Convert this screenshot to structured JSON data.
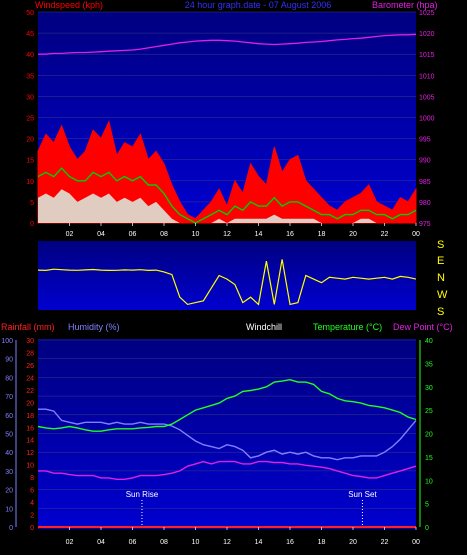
{
  "colors": {
    "background": "#000000",
    "plot_top": "#000080",
    "plot_bottom": "#0000d0",
    "gridline": "#3a3a8a",
    "wind_gust": "#ff0000",
    "wind_avg": "#00d000",
    "wind_min": "#d8fff0",
    "wind_base": "#ffffff",
    "barometer": "#e020e0",
    "wind_dir": "#ffff00",
    "rainfall": "#ff2020",
    "humidity": "#8080ff",
    "windchill": "#ffffff",
    "temperature": "#20ff20",
    "dewpoint": "#e020e0",
    "sun_marker": "#ffffff"
  },
  "header": {
    "windspeed_label": "Windspeed (kph)",
    "graph_title": "24 hour graph.date - 07 August 2006",
    "barometer_label": "Barometer (hpa)"
  },
  "lower_header": {
    "rainfall_label": "Rainfall (mm)",
    "humidity_label": "Humidity (%)",
    "windchill_label": "Windchill",
    "temperature_label": "Temperature (°C)",
    "dewpoint_label": "Dew Point (°C)"
  },
  "compass": [
    "S",
    "E",
    "N",
    "W",
    "S"
  ],
  "sun_labels": {
    "sunrise": "Sun Rise",
    "sunset": "Sun Set"
  },
  "chart_data": [
    {
      "type": "line",
      "name": "wind-barometer",
      "x": [
        0,
        0.5,
        1,
        1.5,
        2,
        2.5,
        3,
        3.5,
        4,
        4.5,
        5,
        5.5,
        6,
        6.5,
        7,
        7.5,
        8,
        8.5,
        9,
        9.5,
        10,
        10.5,
        11,
        11.5,
        12,
        12.5,
        13,
        13.5,
        14,
        14.5,
        15,
        15.5,
        16,
        16.5,
        17,
        17.5,
        18,
        18.5,
        19,
        19.5,
        20,
        20.5,
        21,
        21.5,
        22,
        22.5,
        23,
        23.5,
        24
      ],
      "xticks": [
        "02",
        "04",
        "06",
        "08",
        "10",
        "12",
        "14",
        "16",
        "18",
        "20",
        "22",
        "00"
      ],
      "xtick_positions": [
        2,
        4,
        6,
        8,
        10,
        12,
        14,
        16,
        18,
        20,
        22,
        24
      ],
      "xlim": [
        0,
        24
      ],
      "ylim_left": [
        0,
        50
      ],
      "yticks_left": [
        0,
        5,
        10,
        15,
        20,
        25,
        30,
        35,
        40,
        45,
        50
      ],
      "ylim_right": [
        975,
        1025
      ],
      "yticks_right": [
        975,
        980,
        985,
        990,
        995,
        1000,
        1005,
        1010,
        1015,
        1020,
        1025
      ],
      "series": [
        {
          "key": "gust",
          "axis": "left",
          "values": [
            17,
            21,
            19,
            23,
            18,
            15,
            17,
            22,
            20,
            24,
            16,
            19,
            18,
            21,
            15,
            17,
            14,
            9,
            5,
            2,
            1,
            3,
            5,
            8,
            4,
            10,
            7,
            14,
            11,
            9,
            18,
            12,
            15,
            16,
            10,
            8,
            6,
            4,
            3,
            5,
            6,
            7,
            9,
            5,
            4,
            3,
            6,
            5,
            8
          ]
        },
        {
          "key": "average",
          "axis": "left",
          "values": [
            11,
            12,
            11,
            13,
            11,
            10,
            10,
            12,
            11,
            12,
            10,
            11,
            10,
            11,
            9,
            9,
            7,
            4,
            2,
            1,
            0,
            1,
            2,
            3,
            2,
            4,
            3,
            5,
            4,
            4,
            6,
            4,
            5,
            5,
            4,
            3,
            2,
            2,
            1,
            2,
            2,
            3,
            3,
            2,
            2,
            1,
            2,
            2,
            3
          ]
        },
        {
          "key": "minimum",
          "axis": "left",
          "values": [
            6,
            7,
            6,
            8,
            7,
            5,
            6,
            7,
            6,
            7,
            5,
            6,
            5,
            6,
            4,
            5,
            3,
            1,
            0,
            0,
            0,
            0,
            0,
            1,
            0,
            1,
            1,
            1,
            1,
            1,
            2,
            1,
            1,
            1,
            1,
            1,
            0,
            0,
            0,
            0,
            0,
            1,
            1,
            0,
            0,
            0,
            0,
            0,
            0
          ]
        },
        {
          "key": "barometer",
          "axis": "right",
          "values": [
            1015,
            1015,
            1015.2,
            1015.2,
            1015.3,
            1015.4,
            1015.4,
            1015.5,
            1015.6,
            1015.7,
            1015.8,
            1015.9,
            1016,
            1016.2,
            1016.5,
            1016.8,
            1017.1,
            1017.4,
            1017.7,
            1017.9,
            1018.1,
            1018.2,
            1018.3,
            1018.3,
            1018.2,
            1018.1,
            1017.9,
            1017.7,
            1017.5,
            1017.4,
            1017.3,
            1017.4,
            1017.5,
            1017.6,
            1017.8,
            1017.9,
            1018,
            1018.2,
            1018.4,
            1018.5,
            1018.7,
            1018.8,
            1019,
            1019.2,
            1019.4,
            1019.5,
            1019.6,
            1019.6,
            1019.7
          ]
        }
      ]
    },
    {
      "type": "line",
      "name": "wind-direction",
      "x": [
        0,
        0.5,
        1,
        1.5,
        2,
        2.5,
        3,
        3.5,
        4,
        4.5,
        5,
        5.5,
        6,
        6.5,
        7,
        7.5,
        8,
        8.5,
        9,
        9.5,
        10,
        10.5,
        11,
        11.5,
        12,
        12.5,
        13,
        13.5,
        14,
        14.5,
        15,
        15.5,
        16,
        16.5,
        17,
        17.5,
        18,
        18.5,
        19,
        19.5,
        20,
        20.5,
        21,
        21.5,
        22,
        22.5,
        23,
        23.5,
        24
      ],
      "ylim": [
        0,
        360
      ],
      "series": [
        {
          "key": "direction",
          "values": [
            150,
            152,
            145,
            148,
            150,
            151,
            149,
            147,
            150,
            152,
            151,
            149,
            150,
            148,
            152,
            150,
            160,
            175,
            300,
            340,
            330,
            320,
            250,
            180,
            200,
            230,
            330,
            300,
            340,
            100,
            340,
            90,
            340,
            330,
            180,
            200,
            220,
            190,
            195,
            200,
            190,
            195,
            200,
            195,
            190,
            200,
            185,
            190,
            200
          ]
        }
      ]
    },
    {
      "type": "line",
      "name": "temperature-humidity",
      "x": [
        0,
        0.5,
        1,
        1.5,
        2,
        2.5,
        3,
        3.5,
        4,
        4.5,
        5,
        5.5,
        6,
        6.5,
        7,
        7.5,
        8,
        8.5,
        9,
        9.5,
        10,
        10.5,
        11,
        11.5,
        12,
        12.5,
        13,
        13.5,
        14,
        14.5,
        15,
        15.5,
        16,
        16.5,
        17,
        17.5,
        18,
        18.5,
        19,
        19.5,
        20,
        20.5,
        21,
        21.5,
        22,
        22.5,
        23,
        23.5,
        24
      ],
      "xticks": [
        "02",
        "04",
        "06",
        "08",
        "10",
        "12",
        "14",
        "16",
        "18",
        "20",
        "22",
        "00"
      ],
      "xtick_positions": [
        2,
        4,
        6,
        8,
        10,
        12,
        14,
        16,
        18,
        20,
        22,
        24
      ],
      "xlim": [
        0,
        24
      ],
      "ylim_rain": [
        0,
        30
      ],
      "yticks_rain": [
        0,
        2,
        4,
        6,
        8,
        10,
        12,
        14,
        16,
        18,
        20,
        22,
        24,
        26,
        28,
        30
      ],
      "ylim_humidity": [
        0,
        100
      ],
      "yticks_humidity": [
        0,
        10,
        20,
        30,
        40,
        50,
        60,
        70,
        80,
        90,
        100
      ],
      "ylim_temp": [
        0,
        40
      ],
      "yticks_temp": [
        0,
        5,
        10,
        15,
        20,
        25,
        30,
        35,
        40
      ],
      "series": [
        {
          "key": "rainfall",
          "axis": "rain",
          "values": [
            0,
            0,
            0,
            0,
            0,
            0,
            0,
            0,
            0,
            0,
            0,
            0,
            0,
            0,
            0,
            0,
            0,
            0,
            0,
            0,
            0,
            0,
            0,
            0,
            0,
            0,
            0,
            0,
            0,
            0,
            0,
            0,
            0,
            0,
            0,
            0,
            0,
            0,
            0,
            0,
            0,
            0,
            0,
            0,
            0,
            0,
            0,
            0,
            0
          ]
        },
        {
          "key": "humidity",
          "axis": "humidity",
          "values": [
            63,
            63,
            62,
            57,
            56,
            55,
            56,
            56,
            56,
            55,
            56,
            55,
            55,
            56,
            55,
            55,
            55,
            54,
            52,
            49,
            46,
            44,
            43,
            42,
            44,
            43,
            41,
            37,
            38,
            40,
            41,
            39,
            40,
            39,
            40,
            38,
            37,
            37,
            36,
            37,
            37,
            38,
            38,
            38,
            40,
            43,
            47,
            52,
            57
          ]
        },
        {
          "key": "temperature",
          "axis": "temp",
          "values": [
            21.5,
            21.2,
            21,
            21.2,
            21.5,
            21.2,
            20.8,
            20.5,
            20.5,
            20.8,
            21,
            21,
            21,
            21.2,
            21.3,
            21.5,
            21.5,
            22,
            23,
            24,
            25,
            25.5,
            26,
            26.5,
            27.5,
            28,
            29,
            29.2,
            29.5,
            30,
            31,
            31.2,
            31.5,
            31,
            31,
            30.5,
            29,
            28.5,
            27.5,
            27,
            26.8,
            26.5,
            26,
            25.8,
            25.5,
            25,
            24.5,
            23.5,
            23
          ]
        },
        {
          "key": "dewpoint",
          "axis": "temp",
          "values": [
            12,
            12,
            11.5,
            11.5,
            11.2,
            11,
            11,
            11,
            10.5,
            10.5,
            10.2,
            10.2,
            10.5,
            11,
            11,
            11,
            11.2,
            11.5,
            12,
            13,
            13.5,
            14,
            13.5,
            14,
            14,
            14,
            13.5,
            13.5,
            14,
            14,
            13.8,
            13.8,
            13.5,
            13.5,
            13.2,
            13,
            12.8,
            12.5,
            12,
            11.5,
            11,
            10.8,
            10.5,
            10.5,
            11,
            11.5,
            12,
            12.5,
            13
          ]
        }
      ],
      "sunrise_x": 6.6,
      "sunset_x": 20.6
    }
  ]
}
